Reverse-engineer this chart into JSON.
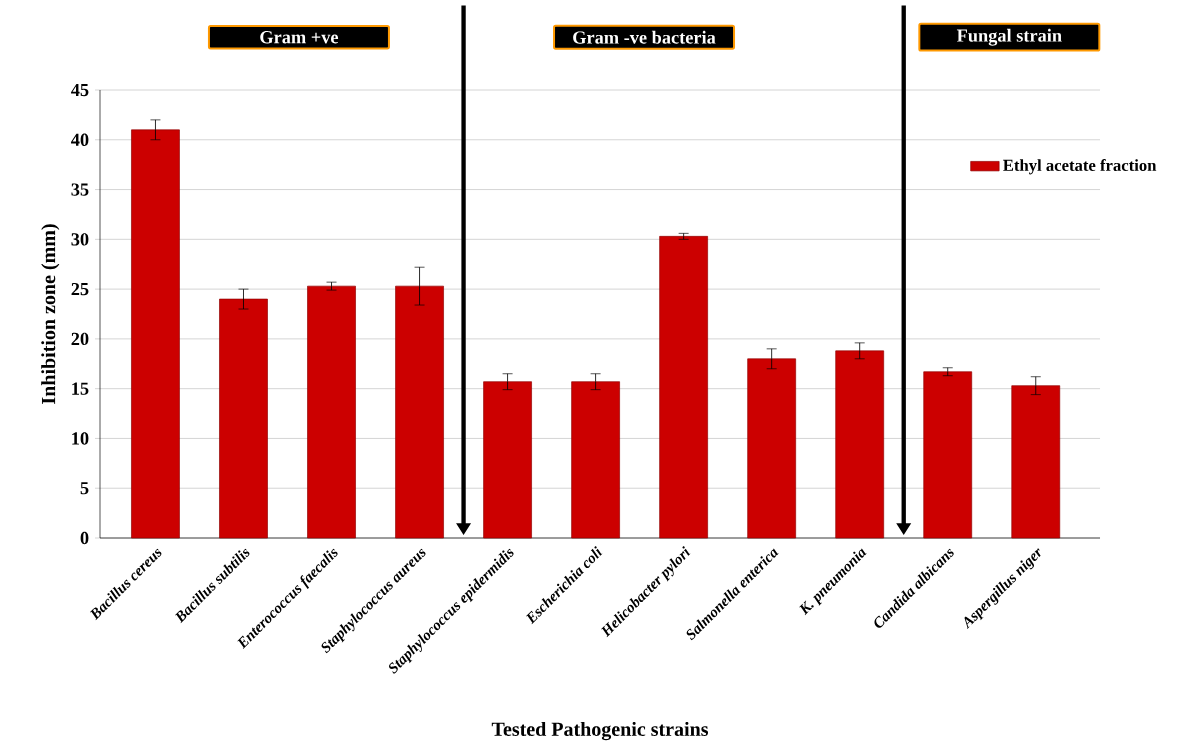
{
  "chart_data": {
    "type": "bar",
    "xlabel": "Tested Pathogenic strains",
    "ylabel": "Inhibition zone (mm)",
    "categories": [
      "Bacillus cereus",
      "Bacillus subtilis",
      "Enterococcus faecalis",
      "Staphylococcus aureus",
      "Staphylococcus epidermidis",
      "Escherichia coli",
      "Helicobacter pylori",
      "Salmonella enterica",
      "K. pneumonia",
      "Candida albicans",
      "Aspergillus  niger"
    ],
    "series": [
      {
        "name": "Ethyl acetate fraction",
        "color": "#cc0000",
        "values": [
          41.0,
          24.0,
          25.3,
          25.3,
          15.7,
          15.7,
          30.3,
          18.0,
          18.8,
          16.7,
          15.3
        ],
        "errors": [
          1.0,
          1.0,
          0.4,
          1.9,
          0.8,
          0.8,
          0.3,
          1.0,
          0.8,
          0.4,
          0.9
        ]
      }
    ],
    "ylim": [
      0,
      45
    ],
    "yticks": [
      0,
      5,
      10,
      15,
      20,
      25,
      30,
      35,
      40,
      45
    ],
    "grid": "y",
    "legend": "right",
    "annotations": [
      "Gram +ve",
      "Gram -ve bacteria",
      "Fungal strain"
    ]
  }
}
